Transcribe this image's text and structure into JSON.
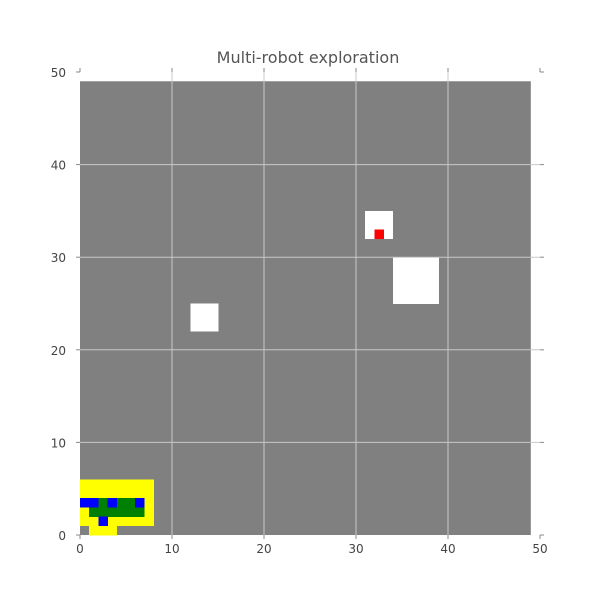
{
  "chart_data": {
    "type": "heatmap",
    "title": "Multi-robot exploration",
    "xlabel": "",
    "ylabel": "",
    "xlim": [
      0,
      50
    ],
    "ylim": [
      0,
      50
    ],
    "xticks": [
      0,
      10,
      20,
      30,
      40,
      50
    ],
    "yticks": [
      0,
      10,
      20,
      30,
      40,
      50
    ],
    "grid": true,
    "grid_extent": [
      0,
      49
    ],
    "colors": {
      "background": "#ffffff",
      "unexplored": "#808080",
      "free": "#ffffff",
      "sensor": "#ffff00",
      "robot": "#0000ff",
      "path": "#008000",
      "target": "#ff0000",
      "grid": "#c8c8c8"
    },
    "layers": [
      {
        "name": "free",
        "color": "#ffffff",
        "cells": [
          {
            "x": 12,
            "y": 22,
            "w": 3,
            "h": 3
          },
          {
            "x": 31,
            "y": 32,
            "w": 3,
            "h": 3
          },
          {
            "x": 34,
            "y": 25,
            "w": 5,
            "h": 5
          }
        ]
      },
      {
        "name": "sensor",
        "color": "#ffff00",
        "cells": [
          {
            "x": 0,
            "y": 1,
            "w": 8,
            "h": 5
          },
          {
            "x": 1,
            "y": 0,
            "w": 3,
            "h": 1
          }
        ]
      },
      {
        "name": "path",
        "color": "#008000",
        "cells": [
          {
            "x": 1,
            "y": 2,
            "w": 6,
            "h": 1
          },
          {
            "x": 2,
            "y": 3,
            "w": 2,
            "h": 1
          },
          {
            "x": 4,
            "y": 3,
            "w": 2,
            "h": 1
          }
        ]
      },
      {
        "name": "robot",
        "color": "#0000ff",
        "cells": [
          {
            "x": 0,
            "y": 3,
            "w": 2,
            "h": 1
          },
          {
            "x": 3,
            "y": 3,
            "w": 1,
            "h": 1
          },
          {
            "x": 6,
            "y": 3,
            "w": 1,
            "h": 1
          },
          {
            "x": 2,
            "y": 1,
            "w": 1,
            "h": 1
          }
        ]
      },
      {
        "name": "target",
        "color": "#ff0000",
        "cells": [
          {
            "x": 32,
            "y": 32,
            "w": 1,
            "h": 1
          }
        ]
      }
    ]
  }
}
